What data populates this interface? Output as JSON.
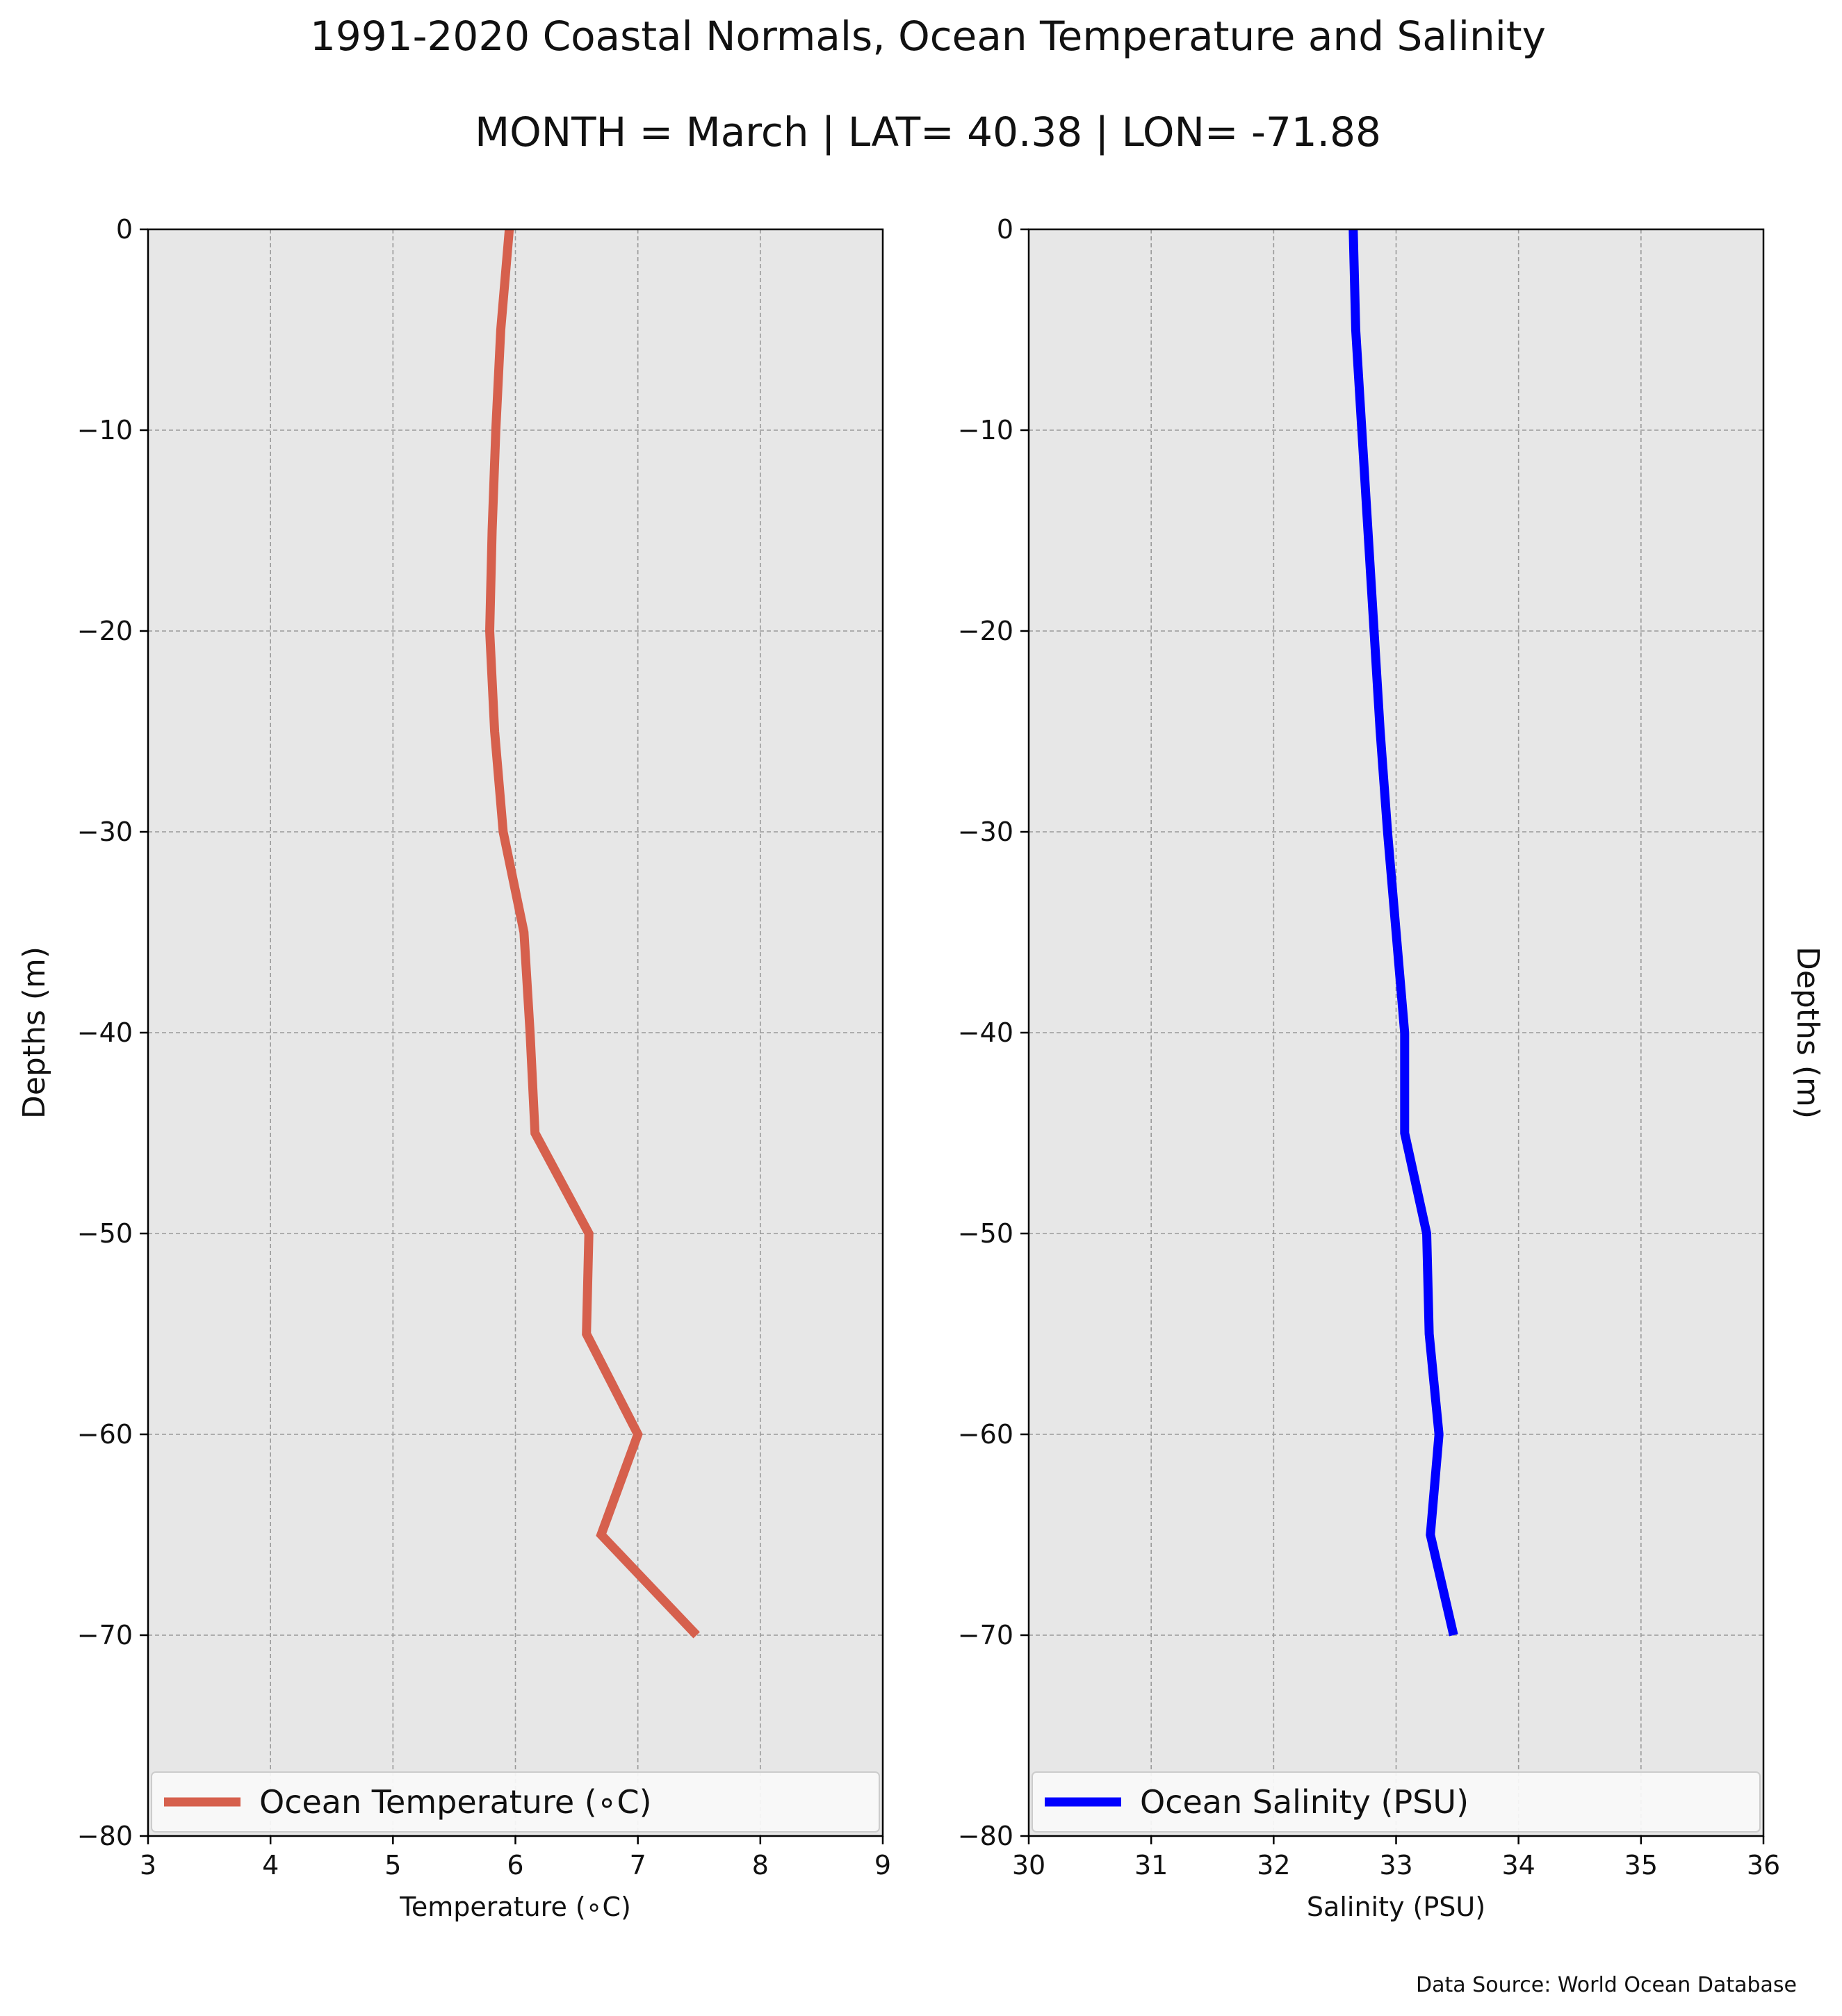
{
  "figure": {
    "title": "1991-2020 Coastal Normals, Ocean Temperature and Salinity",
    "subtitle": "MONTH = March | LAT= 40.38 | LON= -71.88",
    "source": "Data Source: World Ocean Database"
  },
  "chart_data": [
    {
      "type": "line",
      "xlabel": "Temperature (∘C)",
      "ylabel": "Depths (m)",
      "xlim": [
        3,
        9
      ],
      "ylim": [
        -80,
        0
      ],
      "xticks": [
        3,
        4,
        5,
        6,
        7,
        8,
        9
      ],
      "yticks": [
        0,
        -10,
        -20,
        -30,
        -40,
        -50,
        -60,
        -70,
        -80
      ],
      "xtick_labels": [
        "3",
        "4",
        "5",
        "6",
        "7",
        "8",
        "9"
      ],
      "ytick_labels": [
        "0",
        "−10",
        "−20",
        "−30",
        "−40",
        "−50",
        "−60",
        "−70",
        "−80"
      ],
      "grid": true,
      "legend_position": "lower",
      "background": "#e7e7e7",
      "series": [
        {
          "name": "Ocean Temperature (∘C)",
          "color": "#d6604d",
          "x": [
            5.95,
            5.88,
            5.84,
            5.81,
            5.79,
            5.83,
            5.9,
            6.07,
            6.12,
            6.16,
            6.6,
            6.58,
            7.0,
            6.7,
            7.48
          ],
          "y": [
            0,
            -5,
            -10,
            -15,
            -20,
            -25,
            -30,
            -35,
            -40,
            -45,
            -50,
            -55,
            -60,
            -65,
            -70
          ]
        }
      ]
    },
    {
      "type": "line",
      "xlabel": "Salinity (PSU)",
      "ylabel": "Depths (m)",
      "xlim": [
        30,
        36
      ],
      "ylim": [
        -80,
        0
      ],
      "xticks": [
        30,
        31,
        32,
        33,
        34,
        35,
        36
      ],
      "yticks": [
        0,
        -10,
        -20,
        -30,
        -40,
        -50,
        -60,
        -70,
        -80
      ],
      "xtick_labels": [
        "30",
        "31",
        "32",
        "33",
        "34",
        "35",
        "36"
      ],
      "ytick_labels": [
        "0",
        "−10",
        "−20",
        "−30",
        "−40",
        "−50",
        "−60",
        "−70",
        "−80"
      ],
      "grid": true,
      "legend_position": "lower",
      "background": "#e7e7e7",
      "series": [
        {
          "name": "Ocean Salinity (PSU)",
          "color": "#0000ff",
          "x": [
            32.65,
            32.67,
            32.72,
            32.77,
            32.82,
            32.87,
            32.93,
            33.0,
            33.07,
            33.07,
            33.25,
            33.27,
            33.35,
            33.28,
            33.47
          ],
          "y": [
            0,
            -5,
            -10,
            -15,
            -20,
            -25,
            -30,
            -35,
            -40,
            -45,
            -50,
            -55,
            -60,
            -65,
            -70
          ]
        }
      ]
    }
  ]
}
